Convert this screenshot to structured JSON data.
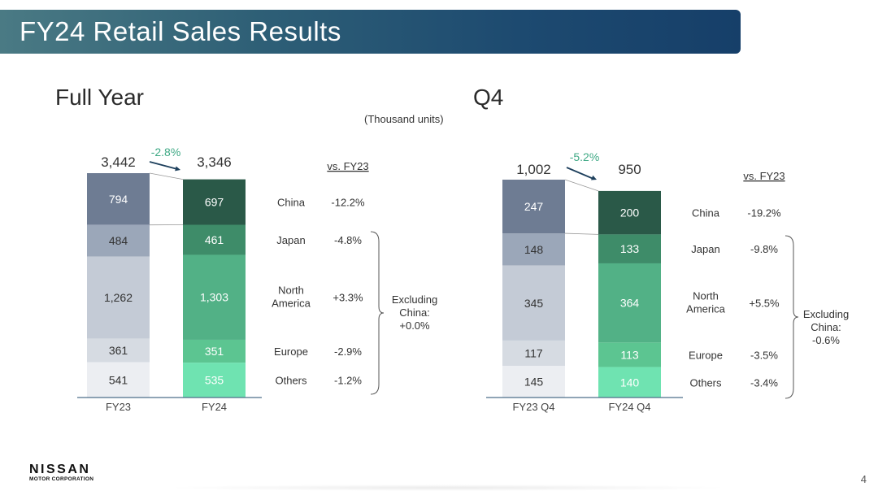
{
  "header": {
    "title": "FY24 Retail Sales Results"
  },
  "note": "(Thousand units)",
  "colors": {
    "prev": [
      "#6e7c93",
      "#9ba7b9",
      "#c4cbd6",
      "#d6dbe2",
      "#eceef2"
    ],
    "curr": [
      "#2a5948",
      "#3e8c69",
      "#52b186",
      "#5cc591",
      "#6fe3b1"
    ],
    "change_accent": "#3fa985",
    "arrow": "#1d3f5c"
  },
  "footer": {
    "logo_main": "NISSAN",
    "logo_sub": "MOTOR CORPORATION",
    "page": "4"
  },
  "chart_data": [
    {
      "type": "bar",
      "title": "Full Year",
      "stacked": true,
      "categories": [
        "FY23",
        "FY24"
      ],
      "series": [
        {
          "name": "China",
          "values": [
            794,
            697
          ],
          "labels": [
            "794",
            "697"
          ],
          "change": "-12.2%"
        },
        {
          "name": "Japan",
          "values": [
            484,
            461
          ],
          "labels": [
            "484",
            "461"
          ],
          "change": "-4.8%"
        },
        {
          "name": "North America",
          "values": [
            1262,
            1303
          ],
          "labels": [
            "1,262",
            "1,303"
          ],
          "change": "+3.3%"
        },
        {
          "name": "Europe",
          "values": [
            361,
            351
          ],
          "labels": [
            "361",
            "351"
          ],
          "change": "-2.9%"
        },
        {
          "name": "Others",
          "values": [
            541,
            535
          ],
          "labels": [
            "541",
            "535"
          ],
          "change": "-1.2%"
        }
      ],
      "totals": [
        "3,442",
        "3,346"
      ],
      "total_change": "-2.8%",
      "vs_label": "vs. FY23",
      "excluding_china": [
        "Excluding",
        "China:",
        "+0.0%"
      ]
    },
    {
      "type": "bar",
      "title": "Q4",
      "stacked": true,
      "categories": [
        "FY23 Q4",
        "FY24 Q4"
      ],
      "series": [
        {
          "name": "China",
          "values": [
            247,
            200
          ],
          "labels": [
            "247",
            "200"
          ],
          "change": "-19.2%"
        },
        {
          "name": "Japan",
          "values": [
            148,
            133
          ],
          "labels": [
            "148",
            "133"
          ],
          "change": "-9.8%"
        },
        {
          "name": "North America",
          "values": [
            345,
            364
          ],
          "labels": [
            "345",
            "364"
          ],
          "change": "+5.5%"
        },
        {
          "name": "Europe",
          "values": [
            117,
            113
          ],
          "labels": [
            "117",
            "113"
          ],
          "change": "-3.5%"
        },
        {
          "name": "Others",
          "values": [
            145,
            140
          ],
          "labels": [
            "145",
            "140"
          ],
          "change": "-3.4%"
        }
      ],
      "totals": [
        "1,002",
        "950"
      ],
      "total_change": "-5.2%",
      "vs_label": "vs. FY23",
      "excluding_china": [
        "Excluding",
        "China:",
        "-0.6%"
      ]
    }
  ]
}
